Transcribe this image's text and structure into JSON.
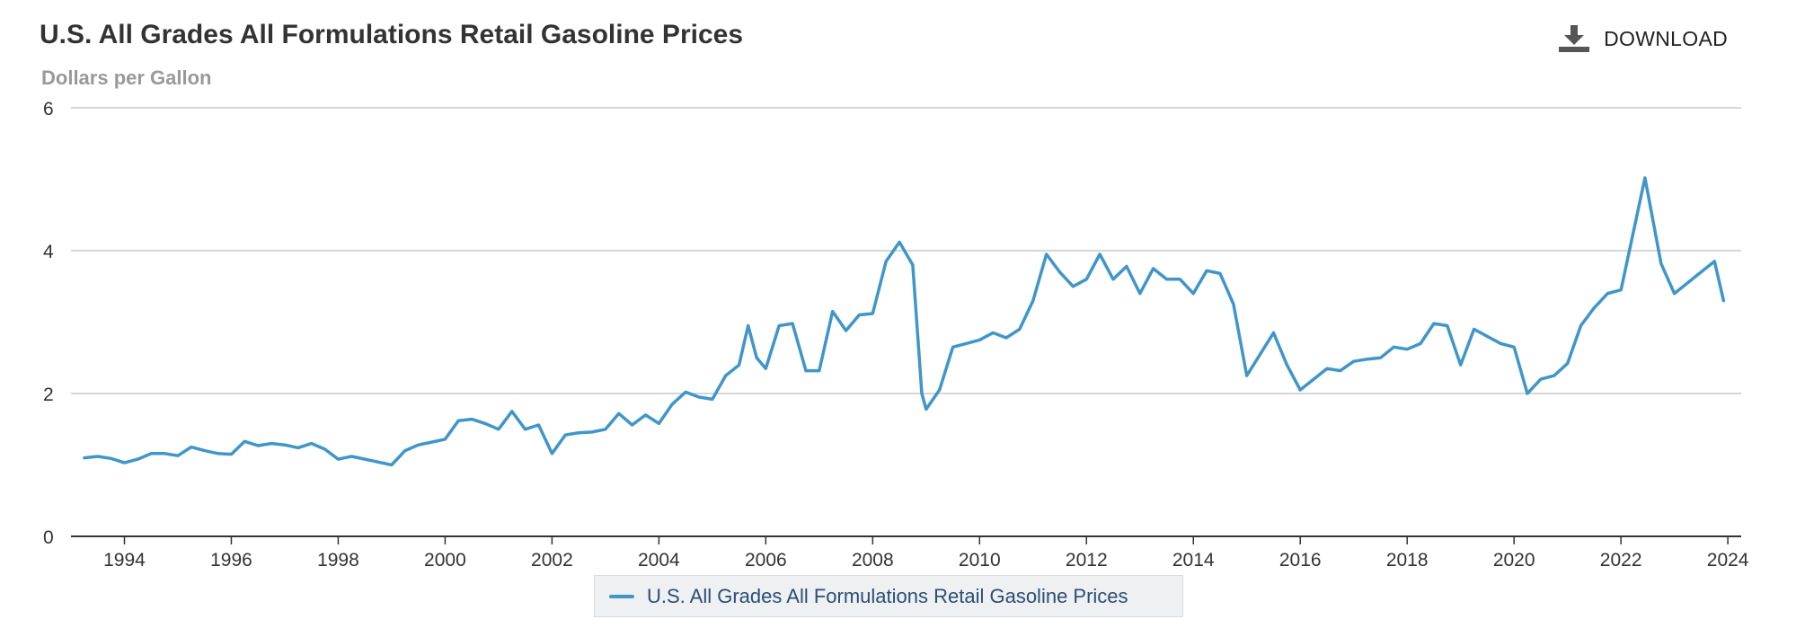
{
  "header": {
    "title": "U.S. All Grades All Formulations Retail Gasoline Prices",
    "subtitle": "Dollars per Gallon",
    "download_label": "DOWNLOAD"
  },
  "colors": {
    "series": "#4096c9",
    "grid": "#c8c8c8",
    "axis": "#333333",
    "title": "#333333",
    "subtitle": "#999999"
  },
  "legend": {
    "label": "U.S. All Grades All Formulations Retail Gasoline Prices"
  },
  "chart_data": {
    "type": "line",
    "title": "U.S. All Grades All Formulations Retail Gasoline Prices",
    "ylabel": "Dollars per Gallon",
    "xlabel": "",
    "xlim": [
      1993.0,
      2024.25
    ],
    "ylim": [
      0,
      6
    ],
    "x_ticks": [
      "1994",
      "1996",
      "1998",
      "2000",
      "2002",
      "2004",
      "2006",
      "2008",
      "2010",
      "2012",
      "2014",
      "2016",
      "2018",
      "2020",
      "2022",
      "2024"
    ],
    "y_ticks": [
      "0",
      "2",
      "4",
      "6"
    ],
    "grid": true,
    "legend_position": "bottom-center",
    "series": [
      {
        "name": "U.S. All Grades All Formulations Retail Gasoline Prices",
        "x": [
          1993.25,
          1993.5,
          1993.75,
          1994.0,
          1994.25,
          1994.5,
          1994.75,
          1995.0,
          1995.25,
          1995.5,
          1995.75,
          1996.0,
          1996.25,
          1996.5,
          1996.75,
          1997.0,
          1997.25,
          1997.5,
          1997.75,
          1998.0,
          1998.25,
          1998.5,
          1998.75,
          1999.0,
          1999.25,
          1999.5,
          1999.75,
          2000.0,
          2000.25,
          2000.5,
          2000.75,
          2001.0,
          2001.25,
          2001.5,
          2001.75,
          2002.0,
          2002.25,
          2002.5,
          2002.75,
          2003.0,
          2003.25,
          2003.5,
          2003.75,
          2004.0,
          2004.25,
          2004.5,
          2004.75,
          2005.0,
          2005.25,
          2005.5,
          2005.67,
          2005.83,
          2006.0,
          2006.25,
          2006.5,
          2006.75,
          2007.0,
          2007.25,
          2007.5,
          2007.75,
          2008.0,
          2008.25,
          2008.5,
          2008.75,
          2008.92,
          2009.0,
          2009.25,
          2009.5,
          2009.75,
          2010.0,
          2010.25,
          2010.5,
          2010.75,
          2011.0,
          2011.25,
          2011.5,
          2011.75,
          2012.0,
          2012.25,
          2012.5,
          2012.75,
          2013.0,
          2013.25,
          2013.5,
          2013.75,
          2014.0,
          2014.25,
          2014.5,
          2014.75,
          2015.0,
          2015.25,
          2015.5,
          2015.75,
          2016.0,
          2016.25,
          2016.5,
          2016.75,
          2017.0,
          2017.25,
          2017.5,
          2017.75,
          2018.0,
          2018.25,
          2018.5,
          2018.75,
          2019.0,
          2019.25,
          2019.5,
          2019.75,
          2020.0,
          2020.25,
          2020.5,
          2020.75,
          2021.0,
          2021.25,
          2021.5,
          2021.75,
          2022.0,
          2022.25,
          2022.45,
          2022.75,
          2023.0,
          2023.25,
          2023.5,
          2023.75,
          2023.92
        ],
        "values": [
          1.1,
          1.12,
          1.09,
          1.03,
          1.08,
          1.16,
          1.16,
          1.13,
          1.25,
          1.2,
          1.16,
          1.15,
          1.33,
          1.27,
          1.3,
          1.28,
          1.24,
          1.3,
          1.22,
          1.08,
          1.12,
          1.08,
          1.04,
          1.0,
          1.2,
          1.28,
          1.32,
          1.36,
          1.62,
          1.64,
          1.58,
          1.5,
          1.75,
          1.5,
          1.56,
          1.16,
          1.42,
          1.45,
          1.46,
          1.5,
          1.72,
          1.56,
          1.7,
          1.58,
          1.85,
          2.02,
          1.95,
          1.92,
          2.25,
          2.4,
          2.95,
          2.5,
          2.35,
          2.95,
          2.98,
          2.32,
          2.32,
          3.15,
          2.88,
          3.1,
          3.12,
          3.85,
          4.12,
          3.8,
          2.0,
          1.78,
          2.05,
          2.65,
          2.7,
          2.75,
          2.85,
          2.78,
          2.9,
          3.3,
          3.95,
          3.7,
          3.5,
          3.6,
          3.95,
          3.6,
          3.78,
          3.4,
          3.75,
          3.6,
          3.6,
          3.4,
          3.72,
          3.68,
          3.25,
          2.25,
          2.55,
          2.85,
          2.4,
          2.05,
          2.2,
          2.35,
          2.32,
          2.45,
          2.48,
          2.5,
          2.65,
          2.62,
          2.7,
          2.98,
          2.95,
          2.4,
          2.9,
          2.8,
          2.7,
          2.65,
          2.0,
          2.2,
          2.25,
          2.42,
          2.95,
          3.2,
          3.4,
          3.45,
          4.32,
          5.02,
          3.82,
          3.4,
          3.55,
          3.7,
          3.85,
          3.3
        ]
      }
    ]
  }
}
